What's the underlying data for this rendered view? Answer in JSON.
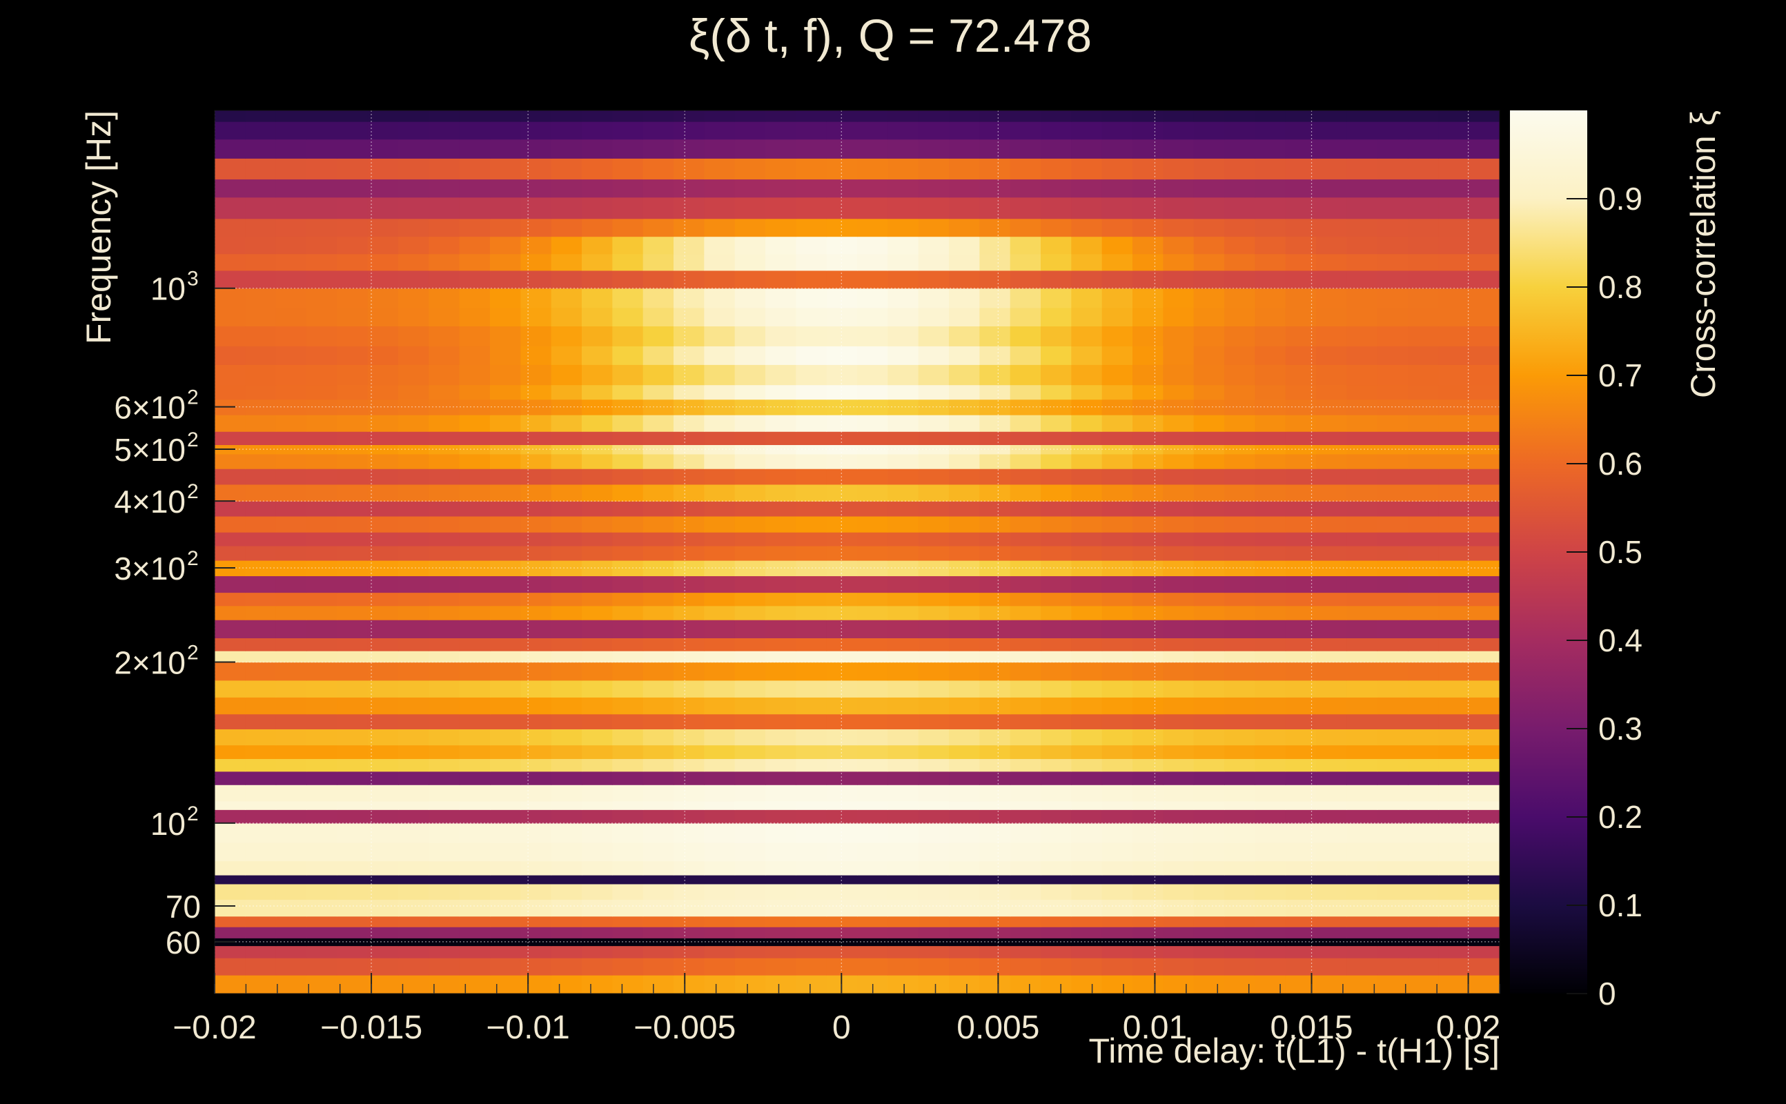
{
  "chart_data": {
    "type": "heatmap",
    "title": "ξ(δ t, f), Q = 72.478",
    "xlabel": "Time delay: t(L1) - t(H1) [s]",
    "ylabel": "Frequency [Hz]",
    "colorbar_label": "Cross-correlation ξ",
    "x_range": [
      -0.02,
      0.021
    ],
    "y_range": [
      48,
      2150
    ],
    "y_scale": "log",
    "z_range": [
      0,
      1
    ],
    "grid": true,
    "colormap": [
      "#000004",
      "#1b0c41",
      "#4a0c6b",
      "#781c6d",
      "#a52c60",
      "#cf4446",
      "#ed6925",
      "#fb9b06",
      "#f7d13d",
      "#fcf1c4",
      "#fcfbee"
    ],
    "x_ticks": [
      {
        "value": -0.02,
        "label": "−0.02"
      },
      {
        "value": -0.015,
        "label": "−0.015"
      },
      {
        "value": -0.01,
        "label": "−0.01"
      },
      {
        "value": -0.005,
        "label": "−0.005"
      },
      {
        "value": 0,
        "label": "0"
      },
      {
        "value": 0.005,
        "label": "0.005"
      },
      {
        "value": 0.01,
        "label": "0.01"
      },
      {
        "value": 0.015,
        "label": "0.015"
      },
      {
        "value": 0.02,
        "label": "0.02"
      }
    ],
    "y_ticks": [
      {
        "value": 60,
        "label": "60"
      },
      {
        "value": 70,
        "label": "70"
      },
      {
        "value": 100,
        "label": "10",
        "exp": "2"
      },
      {
        "value": 200,
        "label": "2×10",
        "exp": "2"
      },
      {
        "value": 300,
        "label": "3×10",
        "exp": "2"
      },
      {
        "value": 400,
        "label": "4×10",
        "exp": "2"
      },
      {
        "value": 500,
        "label": "5×10",
        "exp": "2"
      },
      {
        "value": 600,
        "label": "6×10",
        "exp": "2"
      },
      {
        "value": 1000,
        "label": "10",
        "exp": "3"
      }
    ],
    "z_ticks": [
      {
        "value": 0,
        "label": "0"
      },
      {
        "value": 0.1,
        "label": "0.1"
      },
      {
        "value": 0.2,
        "label": "0.2"
      },
      {
        "value": 0.3,
        "label": "0.3"
      },
      {
        "value": 0.4,
        "label": "0.4"
      },
      {
        "value": 0.5,
        "label": "0.5"
      },
      {
        "value": 0.6,
        "label": "0.6"
      },
      {
        "value": 0.7,
        "label": "0.7"
      },
      {
        "value": 0.8,
        "label": "0.8"
      },
      {
        "value": 0.9,
        "label": "0.9"
      }
    ],
    "frequency_bands_hz": [
      48,
      52,
      56,
      59,
      61,
      64,
      67,
      72,
      77,
      80,
      85,
      92,
      100,
      106,
      110,
      118,
      125,
      132,
      140,
      150,
      160,
      172,
      185,
      200,
      210,
      222,
      240,
      255,
      270,
      290,
      310,
      330,
      350,
      375,
      400,
      430,
      460,
      490,
      510,
      540,
      580,
      620,
      660,
      720,
      780,
      850,
      920,
      1000,
      1080,
      1160,
      1250,
      1350,
      1480,
      1600,
      1750,
      1900,
      2050,
      2150
    ],
    "band_peak_xi": [
      0.74,
      0.62,
      0.55,
      0.02,
      0.4,
      0.62,
      0.93,
      0.92,
      0.12,
      0.97,
      0.98,
      0.99,
      0.46,
      0.99,
      0.98,
      0.35,
      0.9,
      0.82,
      0.88,
      0.6,
      0.75,
      0.86,
      0.7,
      0.95,
      0.6,
      0.42,
      0.78,
      0.72,
      0.45,
      0.85,
      0.62,
      0.58,
      0.7,
      0.55,
      0.78,
      0.6,
      0.95,
      0.99,
      0.55,
      0.98,
      0.8,
      1.0,
      0.9,
      1.0,
      0.92,
      0.97,
      0.99,
      0.6,
      0.98,
      0.99,
      0.7,
      0.5,
      0.4,
      0.65,
      0.3,
      0.22,
      0.15
    ],
    "band_edge_xi": [
      0.68,
      0.55,
      0.48,
      0.02,
      0.35,
      0.58,
      0.88,
      0.86,
      0.12,
      0.9,
      0.93,
      0.94,
      0.4,
      0.95,
      0.93,
      0.3,
      0.8,
      0.7,
      0.75,
      0.55,
      0.68,
      0.76,
      0.62,
      0.88,
      0.55,
      0.38,
      0.65,
      0.6,
      0.38,
      0.7,
      0.54,
      0.5,
      0.6,
      0.48,
      0.62,
      0.52,
      0.65,
      0.68,
      0.5,
      0.65,
      0.62,
      0.6,
      0.6,
      0.58,
      0.6,
      0.62,
      0.62,
      0.5,
      0.58,
      0.55,
      0.55,
      0.45,
      0.35,
      0.55,
      0.25,
      0.18,
      0.12
    ],
    "peak_delay_s": 0.0
  }
}
